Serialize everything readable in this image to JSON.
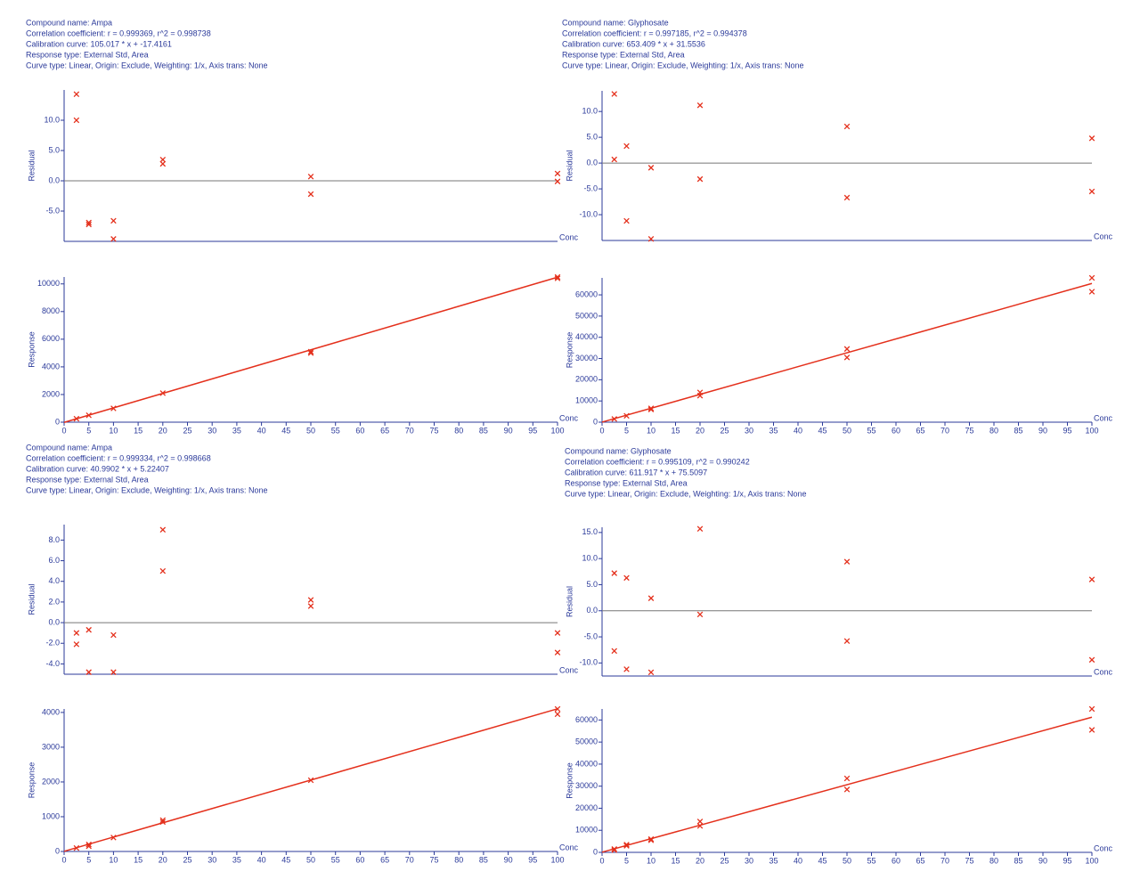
{
  "chart_data": [
    {
      "type": "scatter",
      "annotations": [
        "Compound name: Ampa",
        "Correlation coefficient: r = 0.999369, r^2 = 0.998738",
        "Calibration curve: 105.017 * x + -17.4161",
        "Response type: External Std, Area",
        "Curve type: Linear, Origin: Exclude, Weighting: 1/x, Axis trans: None"
      ],
      "ylabel": "Residual",
      "xlabel": "Conc",
      "xlim": [
        0,
        100
      ],
      "ylim": [
        -10,
        15
      ],
      "yticks": [
        {
          "value": 10,
          "label": "10.0"
        },
        {
          "value": 5,
          "label": "5.0"
        },
        {
          "value": 0,
          "label": "0.0"
        },
        {
          "value": -5,
          "label": "-5.0"
        }
      ],
      "x": [
        2.5,
        2.5,
        5,
        5,
        10,
        10,
        20,
        20,
        50,
        50,
        100,
        100
      ],
      "series": [
        {
          "color": "#e4301c",
          "values": [
            14.3,
            10.0,
            -6.9,
            -7.2,
            -6.6,
            -9.6,
            3.5,
            2.8,
            0.7,
            -2.2,
            1.2,
            -0.1
          ]
        }
      ]
    },
    {
      "type": "scatter",
      "ylabel": "Response",
      "xlabel": "Conc",
      "xlim": [
        0,
        100
      ],
      "ylim": [
        0,
        10500
      ],
      "yticks": [
        0,
        2000,
        4000,
        6000,
        8000,
        10000
      ],
      "xticks": [
        0,
        5,
        10,
        15,
        20,
        25,
        30,
        35,
        40,
        45,
        50,
        55,
        60,
        65,
        70,
        75,
        80,
        85,
        90,
        95,
        100
      ],
      "x": [
        2.5,
        5,
        10,
        20,
        50,
        50,
        100,
        100
      ],
      "series": [
        {
          "color": "#e4301c",
          "values": [
            250,
            500,
            1000,
            2100,
            5100,
            5000,
            10500,
            10400
          ]
        }
      ],
      "fit": {
        "color": "#e4301c",
        "x": [
          0,
          100
        ],
        "y": [
          -17.4,
          10484.3
        ]
      }
    },
    {
      "type": "scatter",
      "annotations": [
        "Compound name: Glyphosate",
        "Correlation coefficient: r = 0.997185, r^2 = 0.994378",
        "Calibration curve: 653.409 * x + 31.5536",
        "Response type: External Std, Area",
        "Curve type: Linear, Origin: Exclude, Weighting: 1/x, Axis trans: None"
      ],
      "ylabel": "Residual",
      "xlabel": "Conc",
      "xlim": [
        0,
        100
      ],
      "ylim": [
        -15,
        14
      ],
      "yticks": [
        {
          "value": 10,
          "label": "10.0"
        },
        {
          "value": 5,
          "label": "5.0"
        },
        {
          "value": 0,
          "label": "0.0"
        },
        {
          "value": -5,
          "label": "-5.0"
        },
        {
          "value": -10,
          "label": "-10.0"
        }
      ],
      "x": [
        2.5,
        2.5,
        5,
        5,
        10,
        10,
        20,
        20,
        50,
        50,
        100,
        100
      ],
      "series": [
        {
          "color": "#e4301c",
          "values": [
            13.4,
            0.7,
            3.3,
            -11.2,
            -0.9,
            -14.7,
            11.2,
            -3.1,
            7.1,
            -6.7,
            4.8,
            -5.5
          ]
        }
      ]
    },
    {
      "type": "scatter",
      "ylabel": "Response",
      "xlabel": "Conc",
      "xlim": [
        0,
        100
      ],
      "ylim": [
        0,
        68000
      ],
      "yticks": [
        0,
        10000,
        20000,
        30000,
        40000,
        50000,
        60000
      ],
      "xticks": [
        0,
        5,
        10,
        15,
        20,
        25,
        30,
        35,
        40,
        45,
        50,
        55,
        60,
        65,
        70,
        75,
        80,
        85,
        90,
        95,
        100
      ],
      "x": [
        2.5,
        5,
        10,
        10,
        20,
        20,
        50,
        50,
        100,
        100
      ],
      "series": [
        {
          "color": "#e4301c",
          "values": [
            1500,
            3000,
            6000,
            6500,
            14000,
            12500,
            34500,
            30500,
            68000,
            61500
          ]
        }
      ],
      "fit": {
        "color": "#e4301c",
        "x": [
          0,
          100
        ],
        "y": [
          31.6,
          65372.5
        ]
      }
    },
    {
      "type": "scatter",
      "annotations": [
        "Compound name: Ampa",
        "Correlation coefficient: r = 0.999334, r^2 = 0.998668",
        "Calibration curve: 40.9902 * x + 5.22407",
        "Response type: External Std, Area",
        "Curve type: Linear, Origin: Exclude, Weighting: 1/x, Axis trans: None"
      ],
      "ylabel": "Residual",
      "xlabel": "Conc",
      "xlim": [
        0,
        100
      ],
      "ylim": [
        -5,
        9.5
      ],
      "yticks": [
        {
          "value": 8,
          "label": "8.0"
        },
        {
          "value": 6,
          "label": "6.0"
        },
        {
          "value": 4,
          "label": "4.0"
        },
        {
          "value": 2,
          "label": "2.0"
        },
        {
          "value": 0,
          "label": "0.0"
        },
        {
          "value": -2,
          "label": "-2.0"
        },
        {
          "value": -4,
          "label": "-4.0"
        }
      ],
      "x": [
        2.5,
        2.5,
        5,
        5,
        10,
        10,
        20,
        20,
        50,
        50,
        100,
        100
      ],
      "series": [
        {
          "color": "#e4301c",
          "values": [
            -1.0,
            -2.1,
            -0.7,
            -4.8,
            -1.2,
            -4.8,
            9.0,
            5.0,
            2.2,
            1.6,
            -1.0,
            -2.9
          ]
        }
      ]
    },
    {
      "type": "scatter",
      "ylabel": "Response",
      "xlabel": "Conc",
      "xlim": [
        0,
        100
      ],
      "ylim": [
        0,
        4100
      ],
      "yticks": [
        0,
        1000,
        2000,
        3000,
        4000
      ],
      "xticks": [
        0,
        5,
        10,
        15,
        20,
        25,
        30,
        35,
        40,
        45,
        50,
        55,
        60,
        65,
        70,
        75,
        80,
        85,
        90,
        95,
        100
      ],
      "x": [
        2.5,
        5,
        5,
        10,
        20,
        20,
        50,
        100,
        100
      ],
      "series": [
        {
          "color": "#e4301c",
          "values": [
            100,
            200,
            150,
            400,
            850,
            900,
            2050,
            4100,
            3950
          ]
        }
      ],
      "fit": {
        "color": "#e4301c",
        "x": [
          0,
          100
        ],
        "y": [
          5.2,
          4104.2
        ]
      }
    },
    {
      "type": "scatter",
      "annotations": [
        "Compound name: Glyphosate",
        "Correlation coefficient: r = 0.995109, r^2 = 0.990242",
        "Calibration curve: 611.917 * x + 75.5097",
        "Response type: External Std, Area",
        "Curve type: Linear, Origin: Exclude, Weighting: 1/x, Axis trans: None"
      ],
      "ylabel": "Residual",
      "xlabel": "Conc",
      "xlim": [
        0,
        100
      ],
      "ylim": [
        -12.5,
        16
      ],
      "yticks": [
        {
          "value": 15,
          "label": "15.0"
        },
        {
          "value": 10,
          "label": "10.0"
        },
        {
          "value": 5,
          "label": "5.0"
        },
        {
          "value": 0,
          "label": "0.0"
        },
        {
          "value": -5,
          "label": "-5.0"
        },
        {
          "value": -10,
          "label": "-10.0"
        }
      ],
      "x": [
        2.5,
        2.5,
        5,
        5,
        10,
        10,
        20,
        20,
        50,
        50,
        100,
        100
      ],
      "series": [
        {
          "color": "#e4301c",
          "values": [
            7.2,
            -7.7,
            6.3,
            -11.2,
            2.4,
            -11.8,
            15.7,
            -0.7,
            9.4,
            -5.8,
            6.0,
            -9.4
          ]
        }
      ]
    },
    {
      "type": "scatter",
      "ylabel": "Response",
      "xlabel": "Conc",
      "xlim": [
        0,
        100
      ],
      "ylim": [
        0,
        65000
      ],
      "yticks": [
        0,
        10000,
        20000,
        30000,
        40000,
        50000,
        60000
      ],
      "xticks": [
        0,
        5,
        10,
        15,
        20,
        25,
        30,
        35,
        40,
        45,
        50,
        55,
        60,
        65,
        70,
        75,
        80,
        85,
        90,
        95,
        100
      ],
      "x": [
        2.5,
        2.5,
        5,
        5,
        10,
        10,
        20,
        20,
        50,
        50,
        100,
        100
      ],
      "series": [
        {
          "color": "#e4301c",
          "values": [
            1500,
            1000,
            3000,
            3500,
            5500,
            6000,
            14000,
            12000,
            33500,
            28500,
            65000,
            55500
          ]
        }
      ],
      "fit": {
        "color": "#e4301c",
        "x": [
          0,
          100
        ],
        "y": [
          75.5,
          61267.2
        ]
      }
    }
  ]
}
